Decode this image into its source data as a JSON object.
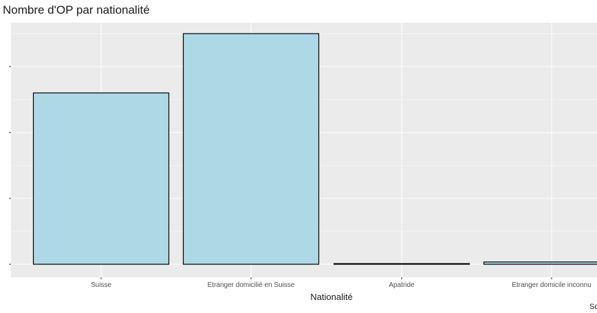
{
  "chart_data": {
    "type": "bar",
    "title": "Nombre d'OP par nationalité",
    "xlabel": "Nationalité",
    "ylabel": "",
    "categories": [
      "Suisse",
      "Etranger domicilié en Suisse",
      "Apatride",
      "Etranger domicile inconnu"
    ],
    "values": [
      52,
      70,
      0.2,
      0.7
    ],
    "ylim": [
      0,
      70
    ],
    "grid": true,
    "bar_color": "#add8e6",
    "bar_outline": "#000000",
    "panel_color": "#ebebeb",
    "caption": "So"
  }
}
